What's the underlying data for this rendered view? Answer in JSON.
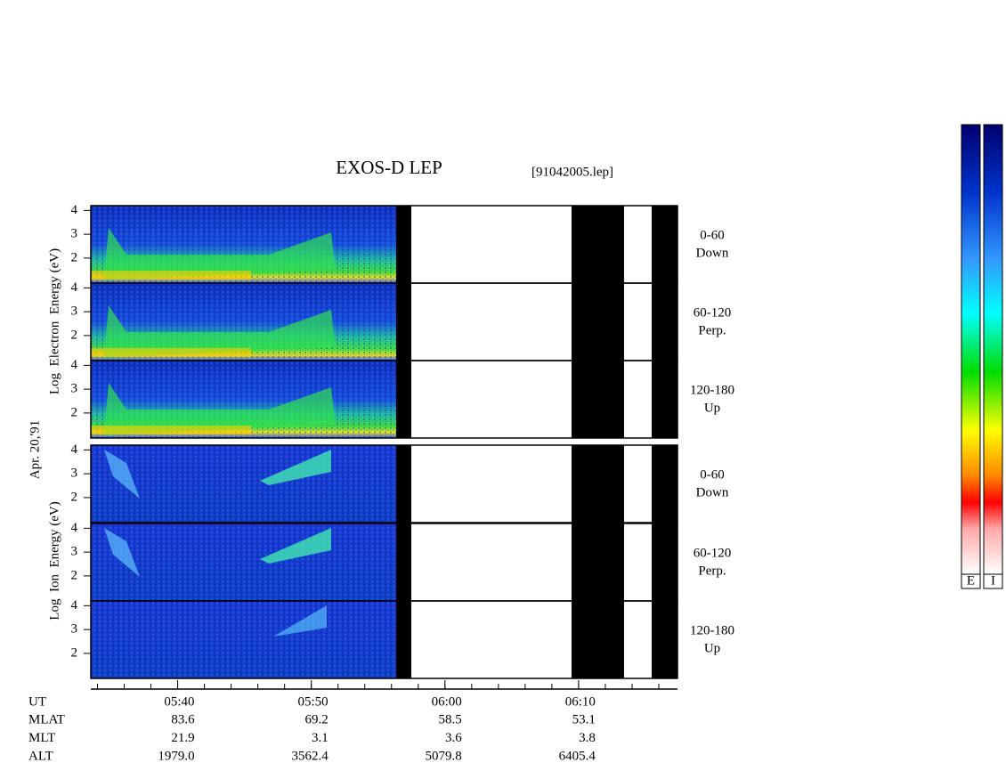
{
  "chart_data": {
    "type": "spectrogram",
    "title": "EXOS-D LEP",
    "file": "[91042005.lep]",
    "date_label": "Apr. 20,'91",
    "species": [
      {
        "axis_label": "Log  Electron  Energy (eV)",
        "colorbar": "E",
        "panels": [
          {
            "angle": "0-60",
            "direction": "Down"
          },
          {
            "angle": "60-120",
            "direction": "Perp."
          },
          {
            "angle": "120-180",
            "direction": "Up"
          }
        ]
      },
      {
        "axis_label": "Log  Ion  Energy (eV)",
        "colorbar": "I",
        "panels": [
          {
            "angle": "0-60",
            "direction": "Down"
          },
          {
            "angle": "60-120",
            "direction": "Perp."
          },
          {
            "angle": "120-180",
            "direction": "Up"
          }
        ]
      }
    ],
    "ylim": [
      0.95,
      4.2
    ],
    "yticks": [
      2,
      3,
      4
    ],
    "xlim": [
      333.5,
      377.4
    ],
    "xminor_step": 2,
    "xticks": [
      {
        "value": 340,
        "label": "05:40"
      },
      {
        "value": 350,
        "label": "05:50"
      },
      {
        "value": 360,
        "label": "06:00"
      },
      {
        "value": 370,
        "label": "06:10"
      }
    ],
    "ephemeris": [
      {
        "name": "UT"
      },
      {
        "name": "MLAT",
        "values": [
          "83.6",
          "69.2",
          "58.5",
          "53.1"
        ]
      },
      {
        "name": "MLT",
        "values": [
          "21.9",
          "3.1",
          "3.6",
          "3.8"
        ]
      },
      {
        "name": "ALT",
        "values": [
          "1979.0",
          "3562.4",
          "5079.8",
          "6405.4"
        ]
      }
    ]
  }
}
